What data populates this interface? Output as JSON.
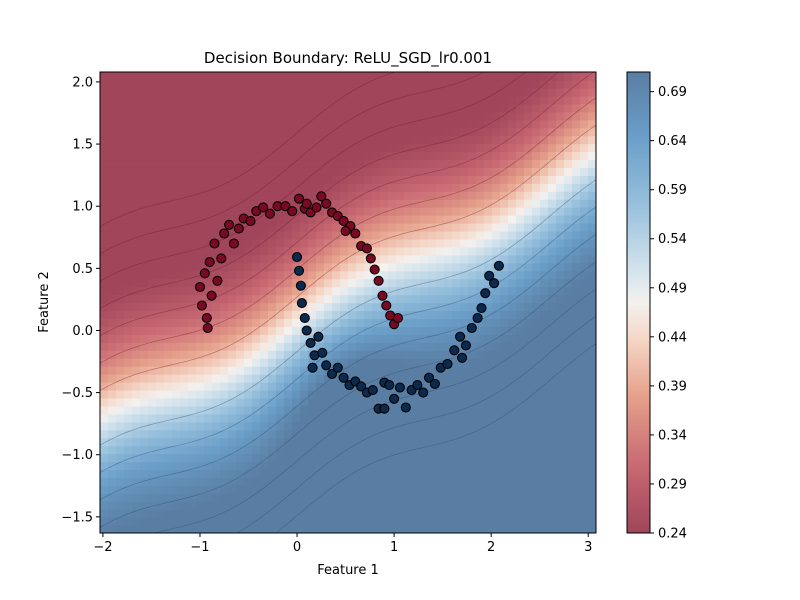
{
  "chart_data": {
    "type": "heatmap",
    "title": "Decision Boundary: ReLU_SGD_lr0.001",
    "xlabel": "Feature 1",
    "ylabel": "Feature 2",
    "xlim": [
      -2.03,
      3.08
    ],
    "ylim": [
      -1.63,
      2.08
    ],
    "xticks": [
      -2,
      -1,
      0,
      1,
      2,
      3
    ],
    "xtick_labels": [
      "−2",
      "−1",
      "0",
      "1",
      "2",
      "3"
    ],
    "yticks": [
      -1.5,
      -1.0,
      -0.5,
      0.0,
      0.5,
      1.0,
      1.5,
      2.0
    ],
    "ytick_labels": [
      "−1.5",
      "−1.0",
      "−0.5",
      "0.0",
      "0.5",
      "1.0",
      "1.5",
      "2.0"
    ],
    "colorbar": {
      "min": 0.24,
      "max": 0.71,
      "ticks": [
        0.24,
        0.29,
        0.34,
        0.39,
        0.44,
        0.49,
        0.54,
        0.59,
        0.64,
        0.69
      ],
      "tick_labels": [
        "0.24",
        "0.29",
        "0.34",
        "0.39",
        "0.44",
        "0.49",
        "0.54",
        "0.59",
        "0.64",
        "0.69"
      ],
      "colormap": "RdBu",
      "low_color": "#67001f",
      "high_color": "#053061"
    },
    "grid": false,
    "legend": "none",
    "series": [
      {
        "class": 0,
        "color": "#7a0a24",
        "points": [
          [
            -1.0,
            0.35
          ],
          [
            -0.98,
            0.2
          ],
          [
            -0.95,
            0.46
          ],
          [
            -0.93,
            0.1
          ],
          [
            -0.9,
            0.55
          ],
          [
            -0.88,
            0.28
          ],
          [
            -0.85,
            0.7
          ],
          [
            -0.82,
            0.4
          ],
          [
            -0.78,
            0.58
          ],
          [
            -0.75,
            0.78
          ],
          [
            -0.7,
            0.85
          ],
          [
            -0.65,
            0.7
          ],
          [
            -0.6,
            0.82
          ],
          [
            -0.55,
            0.9
          ],
          [
            -0.48,
            0.88
          ],
          [
            -0.42,
            0.96
          ],
          [
            -0.35,
            0.99
          ],
          [
            -0.28,
            0.94
          ],
          [
            -0.2,
            1.0
          ],
          [
            -0.12,
            1.0
          ],
          [
            -0.05,
            0.96
          ],
          [
            0.02,
            1.06
          ],
          [
            0.08,
            0.98
          ],
          [
            0.14,
            0.95
          ],
          [
            0.2,
            0.99
          ],
          [
            0.25,
            1.08
          ],
          [
            0.3,
            1.02
          ],
          [
            0.36,
            0.95
          ],
          [
            0.42,
            0.92
          ],
          [
            0.48,
            0.88
          ],
          [
            0.55,
            0.84
          ],
          [
            0.6,
            0.78
          ],
          [
            0.66,
            0.68
          ],
          [
            0.72,
            0.66
          ],
          [
            0.76,
            0.58
          ],
          [
            0.8,
            0.49
          ],
          [
            0.84,
            0.4
          ],
          [
            0.88,
            0.28
          ],
          [
            0.92,
            0.2
          ],
          [
            0.96,
            0.12
          ],
          [
            1.0,
            0.05
          ],
          [
            1.04,
            0.1
          ],
          [
            -0.92,
            0.02
          ],
          [
            0.1,
            1.02
          ],
          [
            0.5,
            0.8
          ]
        ]
      },
      {
        "class": 1,
        "color": "#0c2a4e",
        "points": [
          [
            0.0,
            0.59
          ],
          [
            0.02,
            0.48
          ],
          [
            0.04,
            0.36
          ],
          [
            0.05,
            0.22
          ],
          [
            0.08,
            0.1
          ],
          [
            0.1,
            0.0
          ],
          [
            0.14,
            -0.1
          ],
          [
            0.18,
            -0.2
          ],
          [
            0.22,
            -0.05
          ],
          [
            0.26,
            -0.18
          ],
          [
            0.3,
            -0.28
          ],
          [
            0.36,
            -0.35
          ],
          [
            0.42,
            -0.3
          ],
          [
            0.48,
            -0.38
          ],
          [
            0.54,
            -0.44
          ],
          [
            0.6,
            -0.41
          ],
          [
            0.66,
            -0.45
          ],
          [
            0.72,
            -0.5
          ],
          [
            0.78,
            -0.48
          ],
          [
            0.84,
            -0.63
          ],
          [
            0.9,
            -0.42
          ],
          [
            0.95,
            -0.44
          ],
          [
            1.0,
            -0.55
          ],
          [
            1.06,
            -0.46
          ],
          [
            1.12,
            -0.62
          ],
          [
            1.18,
            -0.48
          ],
          [
            1.24,
            -0.44
          ],
          [
            1.3,
            -0.5
          ],
          [
            1.36,
            -0.38
          ],
          [
            1.42,
            -0.43
          ],
          [
            1.48,
            -0.3
          ],
          [
            1.55,
            -0.27
          ],
          [
            1.62,
            -0.16
          ],
          [
            1.68,
            -0.05
          ],
          [
            1.74,
            -0.12
          ],
          [
            1.8,
            0.02
          ],
          [
            1.86,
            0.1
          ],
          [
            1.9,
            0.18
          ],
          [
            1.94,
            0.3
          ],
          [
            1.98,
            0.44
          ],
          [
            2.03,
            0.38
          ],
          [
            2.08,
            0.52
          ],
          [
            0.9,
            -0.63
          ],
          [
            0.16,
            -0.3
          ],
          [
            1.7,
            -0.22
          ]
        ]
      }
    ]
  }
}
